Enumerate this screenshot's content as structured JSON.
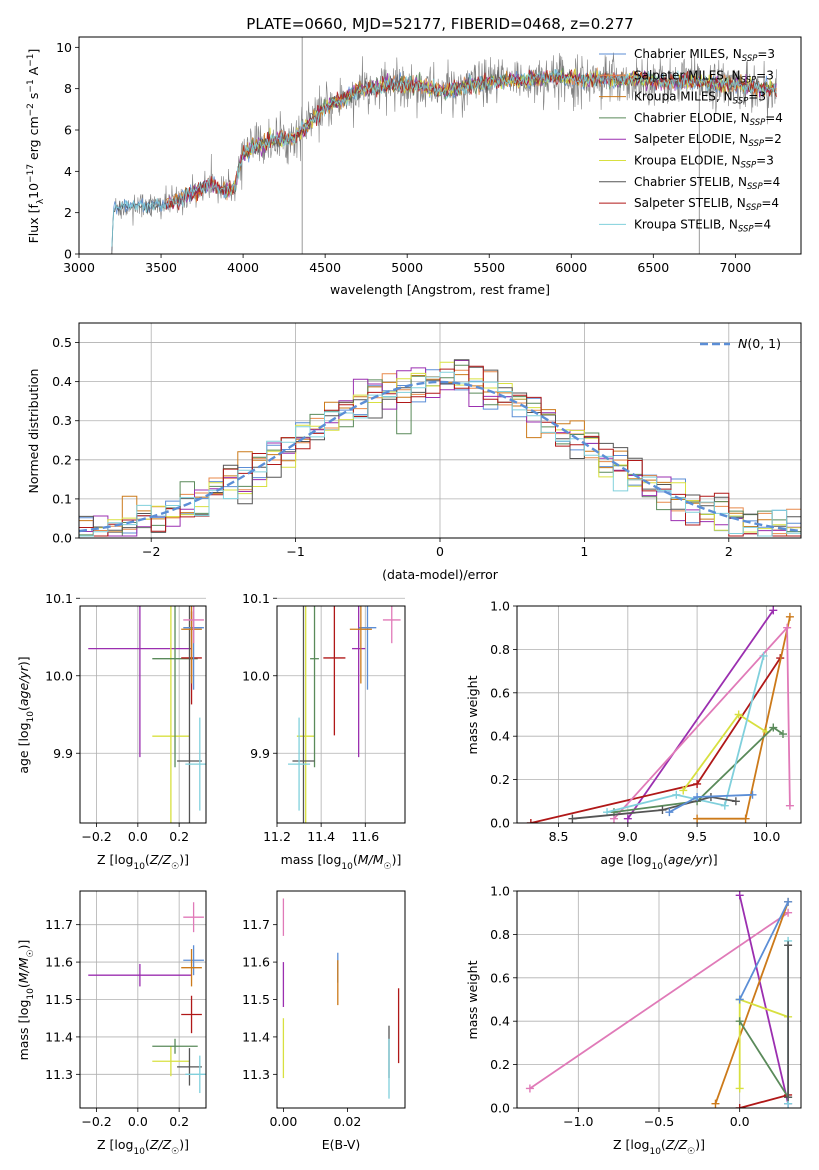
{
  "figure_title": "PLATE=0660, MJD=52177, FIBERID=0468, z=0.277",
  "colors": {
    "Chabrier MILES": "#5b8ed6",
    "Salpeter MILES": "#e8894a",
    "Kroupa MILES": "#cc7a1a",
    "Chabrier ELODIE": "#5a8a5a",
    "Salpeter ELODIE": "#9b2fb0",
    "Kroupa ELODIE": "#d8e040",
    "Chabrier STELIB": "#555555",
    "Salpeter STELIB": "#b01818",
    "Kroupa STELIB": "#80d0dc",
    "Pink": "#e07ab8",
    "normal_curve": "#5b8ed6",
    "grid": "#b0b0b0",
    "spectrum_data": "#808080"
  },
  "chart_data": [
    {
      "type": "line",
      "id": "spectrum",
      "xlabel": "wavelength [Angstrom, rest frame]",
      "ylabel": "Flux [f_λ 10^-17 erg cm^-2 s^-1 A^-1]",
      "xlim": [
        3000,
        7400
      ],
      "ylim": [
        0,
        10.5
      ],
      "xticks": [
        3000,
        3500,
        4000,
        4500,
        5000,
        5500,
        6000,
        6500,
        7000
      ],
      "yticks": [
        0,
        2,
        4,
        6,
        8,
        10
      ],
      "grid": false,
      "legend_position": "right",
      "legend": [
        "Chabrier MILES, N_SSP=3",
        "Salpeter MILES, N_SSP=3",
        "Kroupa MILES, N_SSP=3",
        "Chabrier ELODIE, N_SSP=4",
        "Salpeter ELODIE, N_SSP=2",
        "Kroupa ELODIE, N_SSP=3",
        "Chabrier STELIB, N_SSP=4",
        "Salpeter STELIB, N_SSP=4",
        "Kroupa STELIB, N_SSP=4"
      ],
      "continuum": [
        [
          3200,
          0
        ],
        [
          3210,
          2.2
        ],
        [
          3300,
          2.3
        ],
        [
          3400,
          2.4
        ],
        [
          3500,
          2.3
        ],
        [
          3600,
          2.6
        ],
        [
          3700,
          3.0
        ],
        [
          3800,
          3.4
        ],
        [
          3850,
          3.2
        ],
        [
          3900,
          3.0
        ],
        [
          3950,
          3.3
        ],
        [
          4000,
          4.9
        ],
        [
          4100,
          5.3
        ],
        [
          4200,
          5.5
        ],
        [
          4300,
          5.6
        ],
        [
          4400,
          6.3
        ],
        [
          4500,
          7.1
        ],
        [
          4600,
          7.5
        ],
        [
          4700,
          7.9
        ],
        [
          4800,
          8.0
        ],
        [
          4900,
          8.2
        ],
        [
          5000,
          8.2
        ],
        [
          5100,
          8.1
        ],
        [
          5200,
          7.9
        ],
        [
          5300,
          8.0
        ],
        [
          5400,
          8.2
        ],
        [
          5500,
          8.3
        ],
        [
          5600,
          8.4
        ],
        [
          5700,
          8.4
        ],
        [
          5800,
          8.5
        ],
        [
          5900,
          8.6
        ],
        [
          6000,
          8.5
        ],
        [
          6100,
          8.4
        ],
        [
          6200,
          8.5
        ],
        [
          6300,
          8.4
        ],
        [
          6400,
          8.5
        ],
        [
          6500,
          8.4
        ],
        [
          6600,
          8.3
        ],
        [
          6700,
          8.4
        ],
        [
          6800,
          8.3
        ],
        [
          6900,
          8.2
        ],
        [
          7000,
          8.2
        ],
        [
          7100,
          8.1
        ],
        [
          7200,
          8.0
        ]
      ]
    },
    {
      "type": "line",
      "id": "residuals",
      "xlabel": "(data-model)/error",
      "ylabel": "Normed distribution",
      "xlim": [
        -2.5,
        2.5
      ],
      "ylim": [
        0,
        0.55
      ],
      "xticks": [
        -2,
        -1,
        0,
        1,
        2
      ],
      "yticks": [
        0.0,
        0.1,
        0.2,
        0.3,
        0.4,
        0.5
      ],
      "grid": true,
      "legend": [
        "N(0,1)"
      ],
      "legend_position": "top-right",
      "bin_width": 0.1,
      "bin_start": -2.5
    },
    {
      "type": "scatter",
      "id": "age_vs_Z",
      "xlabel": "Z [log10(Z/Z☉)]",
      "ylabel": "age [log10(age/yr)]",
      "xlim": [
        -0.28,
        0.33
      ],
      "ylim": [
        9.81,
        10.09
      ],
      "xticks": [
        -0.2,
        0.0,
        0.2
      ],
      "yticks": [
        9.9,
        10.0,
        10.1
      ],
      "grid": true,
      "points": [
        {
          "series": "Salpeter ELODIE",
          "x": 0.01,
          "y": 10.035,
          "xerr": 0.25,
          "yerr": 0.14
        },
        {
          "series": "Kroupa ELODIE",
          "x": 0.16,
          "y": 9.922,
          "xerr": 0.09,
          "yerr": 0.21
        },
        {
          "series": "Chabrier ELODIE",
          "x": 0.18,
          "y": 10.022,
          "xerr": 0.11,
          "yerr": 0.14
        },
        {
          "series": "Salpeter STELIB",
          "x": 0.26,
          "y": 10.023,
          "xerr": 0.05,
          "yerr": 0.06
        },
        {
          "series": "Chabrier STELIB",
          "x": 0.25,
          "y": 9.89,
          "xerr": 0.06,
          "yerr": 0.25
        },
        {
          "series": "Kroupa STELIB",
          "x": 0.3,
          "y": 9.886,
          "xerr": 0.07,
          "yerr": 0.06
        },
        {
          "series": "Chabrier MILES",
          "x": 0.27,
          "y": 10.062,
          "xerr": 0.05,
          "yerr": 0.08
        },
        {
          "series": "Kroupa MILES",
          "x": 0.26,
          "y": 10.06,
          "xerr": 0.05,
          "yerr": 0.07
        },
        {
          "series": "Pink",
          "x": 0.27,
          "y": 10.072,
          "xerr": 0.05,
          "yerr": 0.03
        }
      ]
    },
    {
      "type": "scatter",
      "id": "age_vs_mass",
      "xlabel": "mass [log10(M/M☉)]",
      "ylabel": "",
      "xlim": [
        11.2,
        11.78
      ],
      "ylim": [
        9.81,
        10.09
      ],
      "xticks": [
        11.2,
        11.4,
        11.6
      ],
      "yticks": [
        9.9,
        10.0,
        10.1
      ],
      "grid": true,
      "points": [
        {
          "series": "Salpeter ELODIE",
          "x": 11.57,
          "y": 10.035,
          "xerr": 0.03,
          "yerr": 0.14
        },
        {
          "series": "Kroupa ELODIE",
          "x": 11.33,
          "y": 9.922,
          "xerr": 0.04,
          "yerr": 0.21
        },
        {
          "series": "Chabrier ELODIE",
          "x": 11.37,
          "y": 10.022,
          "xerr": 0.02,
          "yerr": 0.14
        },
        {
          "series": "Salpeter STELIB",
          "x": 11.46,
          "y": 10.023,
          "xerr": 0.05,
          "yerr": 0.1
        },
        {
          "series": "Chabrier STELIB",
          "x": 11.32,
          "y": 9.89,
          "xerr": 0.05,
          "yerr": 0.25
        },
        {
          "series": "Kroupa STELIB",
          "x": 11.3,
          "y": 9.886,
          "xerr": 0.05,
          "yerr": 0.06
        },
        {
          "series": "Chabrier MILES",
          "x": 11.61,
          "y": 10.062,
          "xerr": 0.04,
          "yerr": 0.08
        },
        {
          "series": "Kroupa MILES",
          "x": 11.58,
          "y": 10.06,
          "xerr": 0.05,
          "yerr": 0.07
        },
        {
          "series": "Pink",
          "x": 11.72,
          "y": 10.072,
          "xerr": 0.04,
          "yerr": 0.03
        }
      ]
    },
    {
      "type": "line",
      "id": "mass_weight_vs_age",
      "xlabel": "age [log10(age/yr)]",
      "ylabel": "mass weight",
      "xlim": [
        8.2,
        10.25
      ],
      "ylim": [
        0,
        1
      ],
      "xticks": [
        8.5,
        9.0,
        9.5,
        10.0
      ],
      "yticks": [
        0.0,
        0.2,
        0.4,
        0.6,
        0.8,
        1.0
      ],
      "grid": true,
      "series": [
        {
          "name": "Salpeter ELODIE",
          "x": [
            9.0,
            10.05
          ],
          "y": [
            0.02,
            0.98
          ]
        },
        {
          "name": "Salpeter STELIB",
          "x": [
            8.3,
            9.5,
            10.1
          ],
          "y": [
            0.0,
            0.18,
            0.76
          ]
        },
        {
          "name": "Kroupa MILES",
          "x": [
            9.5,
            9.85,
            10.17
          ],
          "y": [
            0.02,
            0.02,
            0.95
          ]
        },
        {
          "name": "Pink",
          "x": [
            8.9,
            10.15,
            10.17
          ],
          "y": [
            0.02,
            0.9,
            0.08
          ]
        },
        {
          "name": "Kroupa ELODIE",
          "x": [
            9.4,
            9.8,
            10.0
          ],
          "y": [
            0.15,
            0.5,
            0.42
          ]
        },
        {
          "name": "Chabrier ELODIE",
          "x": [
            8.9,
            9.5,
            10.05,
            10.12
          ],
          "y": [
            0.05,
            0.1,
            0.44,
            0.41
          ]
        },
        {
          "name": "Kroupa STELIB",
          "x": [
            8.85,
            9.35,
            9.7,
            9.98
          ],
          "y": [
            0.05,
            0.13,
            0.08,
            0.77
          ]
        },
        {
          "name": "Chabrier STELIB",
          "x": [
            8.6,
            9.25,
            9.6,
            9.78
          ],
          "y": [
            0.02,
            0.06,
            0.12,
            0.1
          ]
        },
        {
          "name": "Chabrier MILES",
          "x": [
            9.3,
            9.5,
            9.9
          ],
          "y": [
            0.05,
            0.12,
            0.13
          ]
        }
      ]
    },
    {
      "type": "scatter",
      "id": "mass_vs_Z",
      "xlabel": "Z [log10(Z/Z☉)]",
      "ylabel": "mass [log10(M/M☉)]",
      "xlim": [
        -0.28,
        0.33
      ],
      "ylim": [
        11.21,
        11.79
      ],
      "xticks": [
        -0.2,
        0.0,
        0.2
      ],
      "yticks": [
        11.3,
        11.4,
        11.5,
        11.6,
        11.7
      ],
      "grid": true,
      "points": [
        {
          "series": "Salpeter ELODIE",
          "x": 0.01,
          "y": 11.565,
          "xerr": 0.25,
          "yerr": 0.03
        },
        {
          "series": "Kroupa ELODIE",
          "x": 0.16,
          "y": 11.335,
          "xerr": 0.09,
          "yerr": 0.04
        },
        {
          "series": "Chabrier ELODIE",
          "x": 0.18,
          "y": 11.375,
          "xerr": 0.11,
          "yerr": 0.02
        },
        {
          "series": "Salpeter STELIB",
          "x": 0.26,
          "y": 11.46,
          "xerr": 0.05,
          "yerr": 0.05
        },
        {
          "series": "Chabrier STELIB",
          "x": 0.25,
          "y": 11.32,
          "xerr": 0.06,
          "yerr": 0.05
        },
        {
          "series": "Kroupa STELIB",
          "x": 0.3,
          "y": 11.3,
          "xerr": 0.07,
          "yerr": 0.05
        },
        {
          "series": "Chabrier MILES",
          "x": 0.27,
          "y": 11.605,
          "xerr": 0.05,
          "yerr": 0.04
        },
        {
          "series": "Kroupa MILES",
          "x": 0.26,
          "y": 11.585,
          "xerr": 0.05,
          "yerr": 0.05
        },
        {
          "series": "Pink",
          "x": 0.27,
          "y": 11.72,
          "xerr": 0.05,
          "yerr": 0.04
        }
      ]
    },
    {
      "type": "scatter",
      "id": "mass_vs_ebv",
      "xlabel": "E(B-V)",
      "ylabel": "",
      "xlim": [
        -0.002,
        0.038
      ],
      "ylim": [
        11.21,
        11.79
      ],
      "xticks": [
        0.0,
        0.02
      ],
      "yticks": [
        11.3,
        11.4,
        11.5,
        11.6,
        11.7
      ],
      "grid": false,
      "points": [
        {
          "series": "Pink",
          "x": 0.0,
          "y": 11.72,
          "yerr": 0.05
        },
        {
          "series": "Salpeter ELODIE",
          "x": 0.0,
          "y": 11.54,
          "yerr": 0.06
        },
        {
          "series": "Kroupa ELODIE",
          "x": 0.0,
          "y": 11.37,
          "yerr": 0.08
        },
        {
          "series": "Chabrier MILES",
          "x": 0.017,
          "y": 11.585,
          "yerr": 0.04
        },
        {
          "series": "Kroupa MILES",
          "x": 0.017,
          "y": 11.545,
          "yerr": 0.06
        },
        {
          "series": "Salpeter STELIB",
          "x": 0.036,
          "y": 11.43,
          "yerr": 0.1
        },
        {
          "series": "Chabrier STELIB",
          "x": 0.033,
          "y": 11.36,
          "yerr": 0.07
        },
        {
          "series": "Kroupa STELIB",
          "x": 0.033,
          "y": 11.315,
          "yerr": 0.08
        }
      ]
    },
    {
      "type": "line",
      "id": "mass_weight_vs_Z",
      "xlabel": "Z [log10(Z/Z☉)]",
      "ylabel": "mass weight",
      "xlim": [
        -1.38,
        0.38
      ],
      "ylim": [
        0,
        1
      ],
      "xticks": [
        -1.0,
        -0.5,
        0.0
      ],
      "yticks": [
        0.0,
        0.2,
        0.4,
        0.6,
        0.8,
        1.0
      ],
      "grid": true,
      "series": [
        {
          "name": "Pink",
          "x": [
            -1.3,
            0.3
          ],
          "y": [
            0.09,
            0.9
          ]
        },
        {
          "name": "Salpeter ELODIE",
          "x": [
            0.0,
            0.3
          ],
          "y": [
            0.98,
            0.02
          ]
        },
        {
          "name": "Kroupa MILES",
          "x": [
            -0.15,
            0.3
          ],
          "y": [
            0.02,
            0.95
          ]
        },
        {
          "name": "Salpeter STELIB",
          "x": [
            0.0,
            0.3
          ],
          "y": [
            0.0,
            0.06
          ]
        },
        {
          "name": "Kroupa ELODIE",
          "x": [
            0.0,
            0.0,
            0.3
          ],
          "y": [
            0.09,
            0.5,
            0.42
          ]
        },
        {
          "name": "Chabrier ELODIE",
          "x": [
            0.0,
            0.3
          ],
          "y": [
            0.4,
            0.05
          ]
        },
        {
          "name": "Chabrier MILES",
          "x": [
            0.0,
            0.3
          ],
          "y": [
            0.5,
            0.95
          ]
        },
        {
          "name": "Kroupa STELIB",
          "x": [
            0.3,
            0.3
          ],
          "y": [
            0.02,
            0.77
          ]
        },
        {
          "name": "Chabrier STELIB",
          "x": [
            0.3,
            0.3
          ],
          "y": [
            0.05,
            0.75
          ]
        }
      ]
    }
  ]
}
